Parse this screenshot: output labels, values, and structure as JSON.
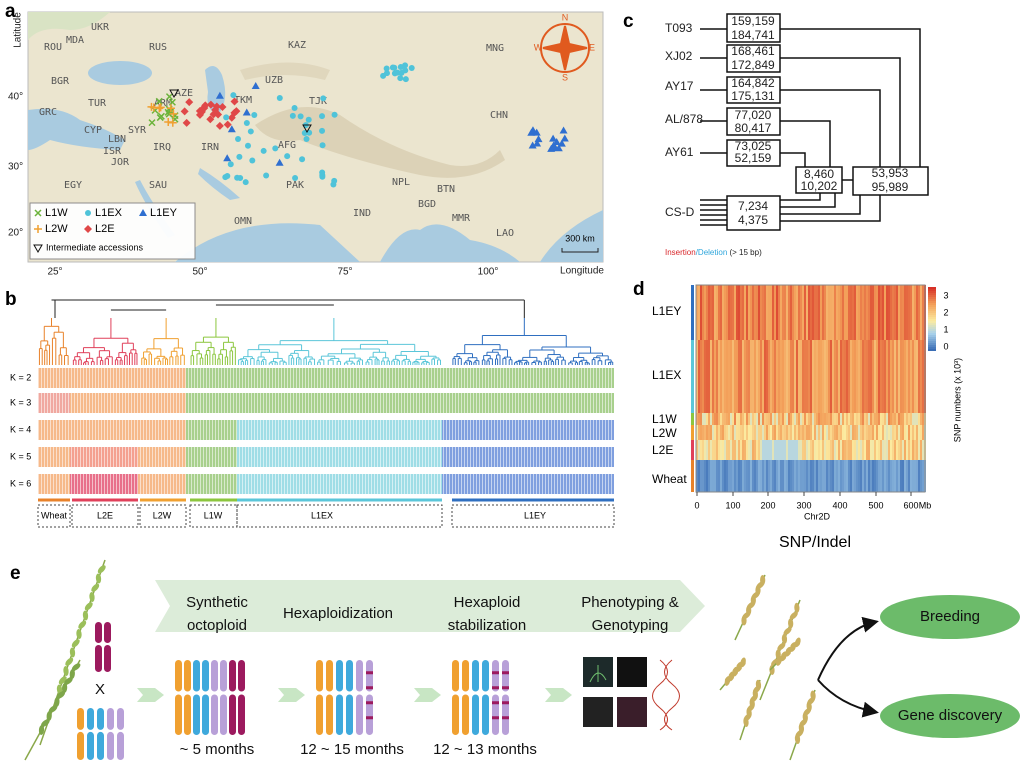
{
  "panel_a": {
    "label": "a",
    "y_axis": "Latitude",
    "x_axis": "Longitude",
    "lat_ticks": [
      "40°",
      "30°",
      "20°"
    ],
    "lon_ticks": [
      "25°",
      "50°",
      "75°",
      "100°"
    ],
    "countries": [
      "UKR",
      "MDA",
      "ROU",
      "RUS",
      "KAZ",
      "MNG",
      "BGR",
      "TUR",
      "GRC",
      "ARM",
      "AZE",
      "UZB",
      "TKM",
      "TJK",
      "CYP",
      "LBN",
      "SYR",
      "ISR",
      "JOR",
      "IRQ",
      "IRN",
      "AFG",
      "CHN",
      "EGY",
      "SAU",
      "PAK",
      "NPL",
      "BTN",
      "BGD",
      "IND",
      "MMR",
      "LAO",
      "OMN"
    ],
    "compass": [
      "N",
      "E",
      "S",
      "W"
    ],
    "legend": [
      "L1W",
      "L1EX",
      "L1EY",
      "L2W",
      "L2E",
      "Intermediate accessions"
    ],
    "scale": "300 km"
  },
  "panel_b": {
    "label": "b",
    "k_rows": [
      "K = 2",
      "K = 3",
      "K = 4",
      "K = 5",
      "K = 6"
    ],
    "groups": [
      "Wheat",
      "L2E",
      "L2W",
      "L1W",
      "L1EX",
      "L1EY"
    ]
  },
  "panel_c": {
    "label": "c",
    "accessions": [
      {
        "name": "T093",
        "insertions": "159,159",
        "deletions": "184,741"
      },
      {
        "name": "XJ02",
        "insertions": "168,461",
        "deletions": "172,849"
      },
      {
        "name": "AY17",
        "insertions": "164,842",
        "deletions": "175,131"
      },
      {
        "name": "AL/878",
        "insertions": "77,020",
        "deletions": "80,417"
      },
      {
        "name": "AY61",
        "insertions": "73,025",
        "deletions": "52,159"
      },
      {
        "name": "CS-D",
        "insertions": "7,234",
        "deletions": "4,375"
      }
    ],
    "shared": [
      {
        "insertions": "8,460",
        "deletions": "10,202"
      },
      {
        "insertions": "53,953",
        "deletions": "95,989"
      }
    ],
    "legend": [
      "Insertion",
      "/Deletion",
      " (> 15 bp)"
    ]
  },
  "panel_d": {
    "label": "d",
    "rows": [
      "L1EY",
      "L1EX",
      "L1W",
      "L2W",
      "L2E",
      "Wheat"
    ],
    "x_ticks": [
      "0",
      "100",
      "200",
      "300",
      "400",
      "500",
      "600"
    ],
    "x_unit": "Mb",
    "x_axis": "Chr2D",
    "colorbar_ticks": [
      "3",
      "2",
      "1",
      "0"
    ],
    "colorbar_label": "SNP numbers (x 10³)",
    "caption": "SNP/Indel"
  },
  "panel_e": {
    "label": "e",
    "steps": [
      [
        "Synthetic",
        "octoploid"
      ],
      [
        "Hexaploidization"
      ],
      [
        "Hexaploid",
        "stabilization"
      ],
      [
        "Phenotyping &",
        "Genotyping"
      ]
    ],
    "durations": [
      "~ 5 months",
      "12 ~ 15 months",
      "12 ~ 13 months"
    ],
    "cross": "X",
    "outcomes": [
      "Breeding",
      "Gene discovery"
    ]
  }
}
